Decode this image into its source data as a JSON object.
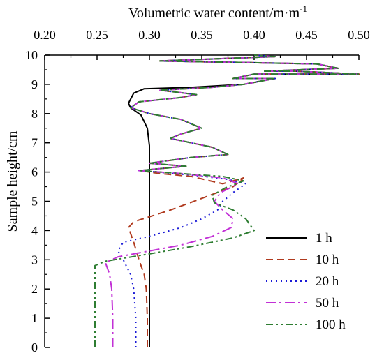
{
  "chart_data": {
    "type": "line",
    "xlabel": "Volumetric water content/m·m",
    "xlabel_sup": "-1",
    "ylabel": "Sample height/cm",
    "x_axis_position": "top",
    "xlim": [
      0.2,
      0.5
    ],
    "ylim": [
      0,
      10
    ],
    "xticks": [
      "0.20",
      "0.25",
      "0.30",
      "0.35",
      "0.40",
      "0.45",
      "0.50"
    ],
    "yticks": [
      "0",
      "1",
      "2",
      "3",
      "4",
      "5",
      "6",
      "7",
      "8",
      "9",
      "10"
    ],
    "grid": false,
    "legend_position": "bottom-right",
    "series": [
      {
        "name": "1 h",
        "color": "#000000",
        "dash": "solid",
        "points": [
          [
            0.3,
            0.0
          ],
          [
            0.3,
            1.0
          ],
          [
            0.3,
            2.0
          ],
          [
            0.3,
            3.0
          ],
          [
            0.3,
            4.0
          ],
          [
            0.3,
            5.0
          ],
          [
            0.3,
            6.0
          ],
          [
            0.3,
            6.9
          ],
          [
            0.298,
            7.5
          ],
          [
            0.292,
            7.95
          ],
          [
            0.282,
            8.2
          ],
          [
            0.28,
            8.35
          ],
          [
            0.285,
            8.7
          ],
          [
            0.295,
            8.85
          ],
          [
            0.34,
            8.9
          ],
          [
            0.39,
            9.0
          ],
          [
            0.42,
            9.2
          ],
          [
            0.38,
            9.2
          ],
          [
            0.4,
            9.35
          ],
          [
            0.5,
            9.35
          ],
          [
            0.44,
            9.45
          ],
          [
            0.41,
            9.45
          ],
          [
            0.48,
            9.55
          ],
          [
            0.46,
            9.7
          ],
          [
            0.31,
            9.8
          ],
          [
            0.42,
            9.95
          ],
          [
            0.4,
            10.0
          ]
        ]
      },
      {
        "name": "10 h",
        "color": "#b03a1e",
        "dash": "10,6",
        "points": [
          [
            0.298,
            0.0
          ],
          [
            0.298,
            1.0
          ],
          [
            0.297,
            2.0
          ],
          [
            0.295,
            2.5
          ],
          [
            0.29,
            3.0
          ],
          [
            0.285,
            3.6
          ],
          [
            0.28,
            4.1
          ],
          [
            0.285,
            4.3
          ],
          [
            0.32,
            4.7
          ],
          [
            0.35,
            5.1
          ],
          [
            0.38,
            5.5
          ],
          [
            0.39,
            5.8
          ],
          [
            0.37,
            5.6
          ],
          [
            0.34,
            5.85
          ],
          [
            0.31,
            5.95
          ],
          [
            0.29,
            6.05
          ],
          [
            0.335,
            6.2
          ],
          [
            0.3,
            6.3
          ],
          [
            0.34,
            6.5
          ],
          [
            0.375,
            6.6
          ],
          [
            0.36,
            6.85
          ],
          [
            0.32,
            7.15
          ],
          [
            0.33,
            7.3
          ],
          [
            0.35,
            7.5
          ],
          [
            0.33,
            7.8
          ],
          [
            0.3,
            8.0
          ],
          [
            0.282,
            8.2
          ],
          [
            0.29,
            8.4
          ],
          [
            0.33,
            8.55
          ],
          [
            0.345,
            8.65
          ],
          [
            0.31,
            8.8
          ],
          [
            0.36,
            8.9
          ],
          [
            0.39,
            9.0
          ],
          [
            0.42,
            9.2
          ],
          [
            0.38,
            9.2
          ],
          [
            0.4,
            9.35
          ],
          [
            0.5,
            9.35
          ],
          [
            0.44,
            9.45
          ],
          [
            0.41,
            9.45
          ],
          [
            0.48,
            9.55
          ],
          [
            0.46,
            9.7
          ],
          [
            0.31,
            9.8
          ],
          [
            0.42,
            9.95
          ],
          [
            0.4,
            10.0
          ]
        ]
      },
      {
        "name": "20 h",
        "color": "#1a1ad6",
        "dash": "2,5",
        "points": [
          [
            0.287,
            0.0
          ],
          [
            0.287,
            1.0
          ],
          [
            0.285,
            2.0
          ],
          [
            0.282,
            2.5
          ],
          [
            0.275,
            3.0
          ],
          [
            0.27,
            3.3
          ],
          [
            0.275,
            3.6
          ],
          [
            0.3,
            3.8
          ],
          [
            0.33,
            4.1
          ],
          [
            0.35,
            4.4
          ],
          [
            0.365,
            4.7
          ],
          [
            0.37,
            5.0
          ],
          [
            0.38,
            5.3
          ],
          [
            0.392,
            5.6
          ],
          [
            0.375,
            5.75
          ],
          [
            0.34,
            5.9
          ],
          [
            0.29,
            6.05
          ],
          [
            0.335,
            6.2
          ],
          [
            0.3,
            6.3
          ],
          [
            0.34,
            6.5
          ],
          [
            0.375,
            6.6
          ],
          [
            0.36,
            6.85
          ],
          [
            0.32,
            7.15
          ],
          [
            0.33,
            7.3
          ],
          [
            0.35,
            7.5
          ],
          [
            0.33,
            7.8
          ],
          [
            0.3,
            8.0
          ],
          [
            0.282,
            8.2
          ],
          [
            0.29,
            8.4
          ],
          [
            0.33,
            8.55
          ],
          [
            0.345,
            8.65
          ],
          [
            0.31,
            8.8
          ],
          [
            0.36,
            8.9
          ],
          [
            0.39,
            9.0
          ],
          [
            0.42,
            9.2
          ],
          [
            0.38,
            9.2
          ],
          [
            0.4,
            9.35
          ],
          [
            0.5,
            9.35
          ],
          [
            0.44,
            9.45
          ],
          [
            0.41,
            9.45
          ],
          [
            0.48,
            9.55
          ],
          [
            0.46,
            9.7
          ],
          [
            0.31,
            9.8
          ],
          [
            0.42,
            9.95
          ],
          [
            0.4,
            10.0
          ]
        ]
      },
      {
        "name": "50 h",
        "color": "#c230d6",
        "dash": "14,5,3,5",
        "points": [
          [
            0.265,
            0.0
          ],
          [
            0.265,
            1.0
          ],
          [
            0.264,
            2.0
          ],
          [
            0.262,
            2.5
          ],
          [
            0.258,
            2.9
          ],
          [
            0.27,
            3.1
          ],
          [
            0.3,
            3.3
          ],
          [
            0.33,
            3.5
          ],
          [
            0.36,
            3.8
          ],
          [
            0.378,
            4.1
          ],
          [
            0.38,
            4.4
          ],
          [
            0.37,
            4.7
          ],
          [
            0.362,
            5.0
          ],
          [
            0.368,
            5.3
          ],
          [
            0.385,
            5.6
          ],
          [
            0.37,
            5.8
          ],
          [
            0.33,
            5.95
          ],
          [
            0.29,
            6.05
          ],
          [
            0.335,
            6.2
          ],
          [
            0.3,
            6.3
          ],
          [
            0.34,
            6.5
          ],
          [
            0.375,
            6.6
          ],
          [
            0.36,
            6.85
          ],
          [
            0.32,
            7.15
          ],
          [
            0.33,
            7.3
          ],
          [
            0.35,
            7.5
          ],
          [
            0.33,
            7.8
          ],
          [
            0.3,
            8.0
          ],
          [
            0.282,
            8.2
          ],
          [
            0.29,
            8.4
          ],
          [
            0.33,
            8.55
          ],
          [
            0.345,
            8.65
          ],
          [
            0.31,
            8.8
          ],
          [
            0.36,
            8.9
          ],
          [
            0.39,
            9.0
          ],
          [
            0.42,
            9.2
          ],
          [
            0.38,
            9.2
          ],
          [
            0.4,
            9.35
          ],
          [
            0.5,
            9.35
          ],
          [
            0.44,
            9.45
          ],
          [
            0.41,
            9.45
          ],
          [
            0.48,
            9.55
          ],
          [
            0.46,
            9.7
          ],
          [
            0.31,
            9.8
          ],
          [
            0.42,
            9.95
          ],
          [
            0.4,
            10.0
          ]
        ]
      },
      {
        "name": "100 h",
        "color": "#2e7d32",
        "dash": "10,4,3,4,3,4",
        "points": [
          [
            0.248,
            0.0
          ],
          [
            0.248,
            1.0
          ],
          [
            0.248,
            2.0
          ],
          [
            0.248,
            2.8
          ],
          [
            0.258,
            2.95
          ],
          [
            0.3,
            3.2
          ],
          [
            0.34,
            3.45
          ],
          [
            0.38,
            3.75
          ],
          [
            0.4,
            4.0
          ],
          [
            0.392,
            4.4
          ],
          [
            0.38,
            4.7
          ],
          [
            0.362,
            4.95
          ],
          [
            0.36,
            5.2
          ],
          [
            0.372,
            5.45
          ],
          [
            0.39,
            5.7
          ],
          [
            0.37,
            5.85
          ],
          [
            0.33,
            5.95
          ],
          [
            0.29,
            6.05
          ],
          [
            0.335,
            6.2
          ],
          [
            0.3,
            6.3
          ],
          [
            0.34,
            6.5
          ],
          [
            0.375,
            6.6
          ],
          [
            0.36,
            6.85
          ],
          [
            0.32,
            7.15
          ],
          [
            0.33,
            7.3
          ],
          [
            0.35,
            7.5
          ],
          [
            0.33,
            7.8
          ],
          [
            0.3,
            8.0
          ],
          [
            0.282,
            8.2
          ],
          [
            0.29,
            8.4
          ],
          [
            0.33,
            8.55
          ],
          [
            0.345,
            8.65
          ],
          [
            0.31,
            8.8
          ],
          [
            0.36,
            8.9
          ],
          [
            0.39,
            9.0
          ],
          [
            0.42,
            9.2
          ],
          [
            0.38,
            9.2
          ],
          [
            0.4,
            9.35
          ],
          [
            0.5,
            9.35
          ],
          [
            0.44,
            9.45
          ],
          [
            0.41,
            9.45
          ],
          [
            0.48,
            9.55
          ],
          [
            0.46,
            9.7
          ],
          [
            0.31,
            9.8
          ],
          [
            0.42,
            9.95
          ],
          [
            0.4,
            10.0
          ]
        ]
      }
    ]
  }
}
